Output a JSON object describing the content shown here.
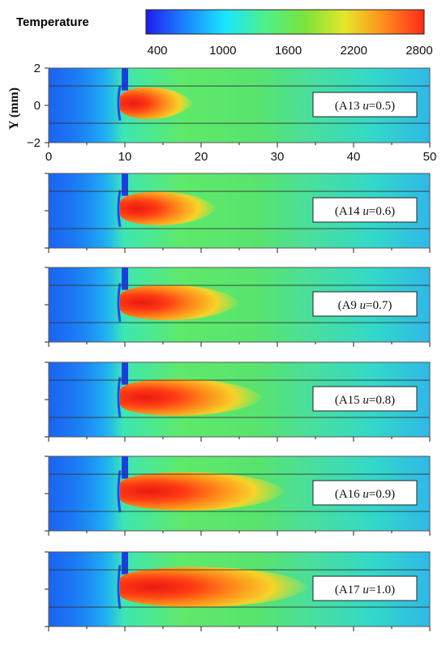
{
  "colorbar": {
    "title": "Temperature",
    "min": 400,
    "max": 2800,
    "ticks": [
      "400",
      "1000",
      "1600",
      "2200",
      "2800"
    ],
    "stops": [
      "#1f1cf0",
      "#1c86ff",
      "#19e6ff",
      "#4ef089",
      "#7ae33a",
      "#e6e62a",
      "#ff8c1a",
      "#ff2a1a"
    ]
  },
  "axes": {
    "ylabel": "Y (mm)",
    "y_ticks": [
      "2",
      "0",
      "−2"
    ],
    "x_ticks": [
      "0",
      "10",
      "20",
      "30",
      "40",
      "50"
    ],
    "x_range": [
      0,
      50
    ],
    "y_range": [
      -2,
      2
    ]
  },
  "cases": [
    {
      "id": "A13",
      "u": "0.5",
      "flame_x": 19
    },
    {
      "id": "A14",
      "u": "0.6",
      "flame_x": 22
    },
    {
      "id": "A9",
      "u": "0.7",
      "flame_x": 25
    },
    {
      "id": "A15",
      "u": "0.8",
      "flame_x": 28
    },
    {
      "id": "A16",
      "u": "0.9",
      "flame_x": 31
    },
    {
      "id": "A17",
      "u": "1.0",
      "flame_x": 34
    }
  ]
}
